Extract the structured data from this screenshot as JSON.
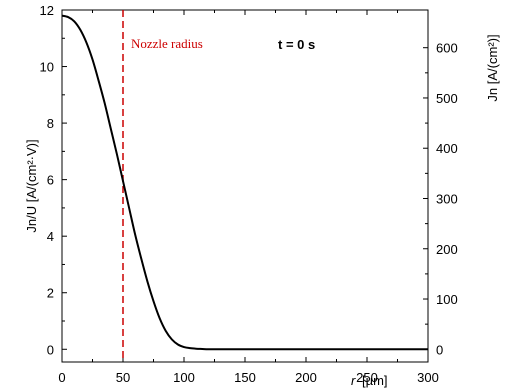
{
  "chart_data": {
    "type": "line",
    "x_tick_labels": [
      "0",
      "50",
      "100",
      "150",
      "200",
      "250",
      "300"
    ],
    "y_left_tick_labels": [
      "0",
      "2",
      "4",
      "6",
      "8",
      "10",
      "12"
    ],
    "y_right_tick_labels": [
      "0",
      "100",
      "200",
      "300",
      "400",
      "500",
      "600"
    ],
    "xlabel_var": "r",
    "xlabel_unit": "[µm]",
    "ylabel_left": "Jn/U [A/(cm²·V)]",
    "ylabel_right": "Jn [A/(cm²)]",
    "xlim": [
      0,
      300
    ],
    "ylim_left": [
      -0.45,
      12
    ],
    "ylim_right": [
      -25.3,
      675
    ],
    "series": [
      {
        "x": [
          0,
          5,
          10,
          15,
          20,
          25,
          30,
          35,
          40,
          45,
          50,
          55,
          60,
          65,
          70,
          75,
          80,
          85,
          90,
          95,
          100,
          105,
          110,
          115,
          120,
          130,
          150,
          200,
          250,
          300
        ],
        "y": [
          11.8,
          11.75,
          11.6,
          11.3,
          10.85,
          10.25,
          9.5,
          8.7,
          7.8,
          6.9,
          5.95,
          5.0,
          4.05,
          3.2,
          2.4,
          1.7,
          1.1,
          0.65,
          0.35,
          0.17,
          0.08,
          0.04,
          0.02,
          0.01,
          0.0,
          0.0,
          0.0,
          0.0,
          0.0,
          0.0
        ],
        "color": "#000000"
      }
    ],
    "annotations": {
      "nozzle_label": "Nozzle radius",
      "nozzle_x": 50,
      "nozzle_color": "#cc0000",
      "time_label": "t = 0 s"
    },
    "grid": false
  }
}
